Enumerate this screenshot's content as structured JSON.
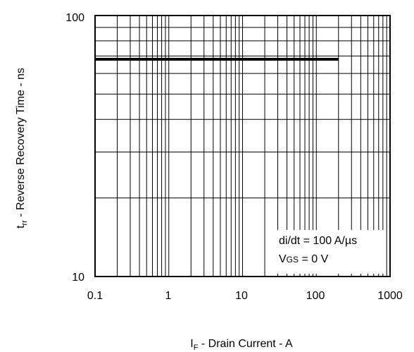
{
  "chart_data": {
    "type": "line",
    "x_scale": "log",
    "y_scale": "log",
    "xlim": [
      0.1,
      1000
    ],
    "ylim": [
      10,
      100
    ],
    "grid": true,
    "x_ticks": [
      "0.1",
      "1",
      "10",
      "100",
      "1000"
    ],
    "y_ticks": [
      "10",
      "100"
    ],
    "ylabel": {
      "main": "t",
      "sub": "rr",
      "rest": " - Reverse Recovery Time - ns"
    },
    "xlabel": {
      "main": "I",
      "sub": "F",
      "rest": " - Drain Current - A"
    },
    "annotations": {
      "line1": "di/dt = 100 A/µs",
      "line2_main": "V",
      "line2_sub": "GS",
      "line2_rest": " = 0 V"
    },
    "series": [
      {
        "x": [
          0.1,
          200
        ],
        "y": [
          68,
          68
        ],
        "color": "#000000"
      }
    ]
  }
}
